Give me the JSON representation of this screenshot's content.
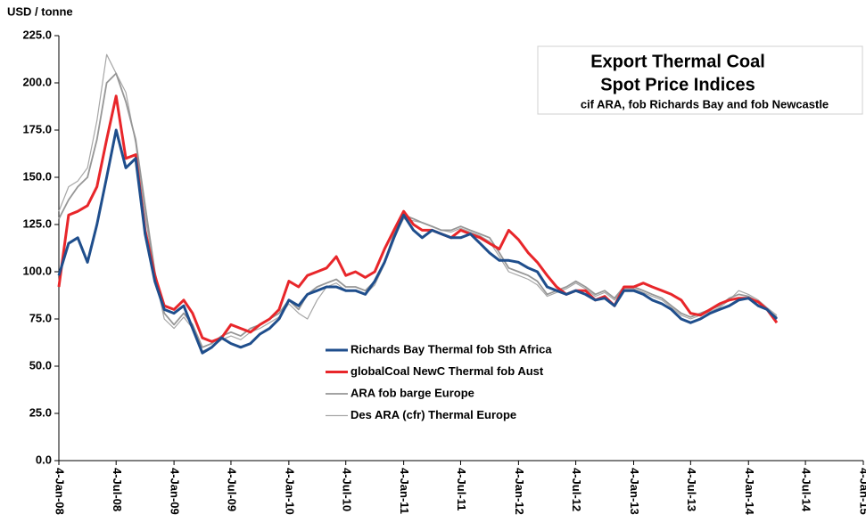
{
  "chart_data": {
    "type": "line",
    "title": "Export Thermal Coal",
    "subtitle": "Spot Price Indices",
    "annotation": "cif ARA, fob Richards Bay and  fob Newcastle",
    "y_label": "USD / tonne",
    "x": [
      "2008-01-04",
      "2008-02-04",
      "2008-03-04",
      "2008-04-04",
      "2008-05-04",
      "2008-06-04",
      "2008-07-04",
      "2008-08-04",
      "2008-09-04",
      "2008-10-04",
      "2008-11-04",
      "2008-12-04",
      "2009-01-04",
      "2009-02-04",
      "2009-03-04",
      "2009-04-04",
      "2009-05-04",
      "2009-06-04",
      "2009-07-04",
      "2009-08-04",
      "2009-09-04",
      "2009-10-04",
      "2009-11-04",
      "2009-12-04",
      "2010-01-04",
      "2010-02-04",
      "2010-03-04",
      "2010-04-04",
      "2010-05-04",
      "2010-06-04",
      "2010-07-04",
      "2010-08-04",
      "2010-09-04",
      "2010-10-04",
      "2010-11-04",
      "2010-12-04",
      "2011-01-04",
      "2011-02-04",
      "2011-03-04",
      "2011-04-04",
      "2011-05-04",
      "2011-06-04",
      "2011-07-04",
      "2011-08-04",
      "2011-09-04",
      "2011-10-04",
      "2011-11-04",
      "2011-12-04",
      "2012-01-04",
      "2012-02-04",
      "2012-03-04",
      "2012-04-04",
      "2012-05-04",
      "2012-06-04",
      "2012-07-04",
      "2012-08-04",
      "2012-09-04",
      "2012-10-04",
      "2012-11-04",
      "2012-12-04",
      "2013-01-04",
      "2013-02-04",
      "2013-03-04",
      "2013-04-04",
      "2013-05-04",
      "2013-06-04",
      "2013-07-04",
      "2013-08-04",
      "2013-09-04",
      "2013-10-04",
      "2013-11-04",
      "2013-12-04",
      "2014-01-04",
      "2014-02-04",
      "2014-03-04",
      "2014-04-04"
    ],
    "series": [
      {
        "name": "Des ARA (cfr) Thermal Europe",
        "color": "#a6a6a6",
        "values": [
          132,
          145,
          148,
          155,
          180,
          215,
          205,
          195,
          168,
          130,
          98,
          75,
          70,
          76,
          70,
          58,
          60,
          64,
          66,
          64,
          68,
          70,
          73,
          76,
          83,
          78,
          75,
          85,
          92,
          94,
          90,
          90,
          88,
          93,
          104,
          118,
          128,
          127,
          126,
          124,
          122,
          121,
          123,
          121,
          119,
          116,
          108,
          100,
          98,
          96,
          93,
          87,
          89,
          91,
          94,
          91,
          87,
          89,
          85,
          91,
          91,
          89,
          87,
          85,
          81,
          77,
          75,
          77,
          79,
          81,
          85,
          90,
          88,
          85,
          81,
          77
        ]
      },
      {
        "name": "ARA fob barge  Europe",
        "color": "#969696",
        "values": [
          128,
          138,
          145,
          150,
          170,
          200,
          205,
          190,
          170,
          135,
          100,
          78,
          72,
          78,
          72,
          60,
          62,
          66,
          68,
          66,
          70,
          72,
          75,
          78,
          85,
          80,
          88,
          92,
          94,
          96,
          92,
          92,
          90,
          95,
          105,
          120,
          130,
          128,
          126,
          124,
          122,
          122,
          124,
          122,
          120,
          118,
          110,
          102,
          100,
          98,
          95,
          88,
          90,
          92,
          95,
          92,
          88,
          90,
          86,
          92,
          92,
          90,
          88,
          86,
          82,
          78,
          76,
          78,
          80,
          82,
          86,
          88,
          87,
          84,
          80,
          76
        ]
      },
      {
        "name": "globalCoal NewC Thermal fob  Aust",
        "color": "#e8262a",
        "values": [
          92,
          130,
          132,
          135,
          145,
          170,
          193,
          160,
          162,
          122,
          98,
          82,
          80,
          85,
          78,
          65,
          63,
          65,
          72,
          70,
          68,
          72,
          75,
          80,
          95,
          92,
          98,
          100,
          102,
          108,
          98,
          100,
          97,
          100,
          112,
          122,
          132,
          125,
          122,
          122,
          120,
          118,
          122,
          120,
          118,
          115,
          112,
          122,
          117,
          110,
          105,
          98,
          92,
          88,
          90,
          90,
          85,
          87,
          82,
          92,
          92,
          94,
          92,
          90,
          88,
          85,
          78,
          77,
          80,
          83,
          85,
          86,
          86,
          84,
          80,
          73
        ]
      },
      {
        "name": "Richards Bay Thermal fob  Sth Africa",
        "color": "#1f4e8c",
        "values": [
          98,
          115,
          118,
          105,
          125,
          150,
          175,
          155,
          160,
          120,
          95,
          80,
          78,
          82,
          70,
          57,
          60,
          65,
          62,
          60,
          62,
          67,
          70,
          75,
          85,
          82,
          88,
          90,
          92,
          92,
          90,
          90,
          88,
          95,
          105,
          118,
          130,
          122,
          118,
          122,
          120,
          118,
          118,
          120,
          115,
          110,
          106,
          106,
          105,
          102,
          100,
          92,
          90,
          88,
          90,
          88,
          85,
          86,
          82,
          90,
          90,
          88,
          85,
          83,
          80,
          75,
          73,
          75,
          78,
          80,
          82,
          85,
          86,
          82,
          80,
          75
        ]
      }
    ],
    "legend_order": [
      3,
      2,
      1,
      0
    ],
    "xlim": [
      "2008-01-04",
      "2015-01-04"
    ],
    "xticks": [
      {
        "value": "2008-01-04",
        "label": "4-Jan-08"
      },
      {
        "value": "2008-07-04",
        "label": "4-Jul-08"
      },
      {
        "value": "2009-01-04",
        "label": "4-Jan-09"
      },
      {
        "value": "2009-07-04",
        "label": "4-Jul-09"
      },
      {
        "value": "2010-01-04",
        "label": "4-Jan-10"
      },
      {
        "value": "2010-07-04",
        "label": "4-Jul-10"
      },
      {
        "value": "2011-01-04",
        "label": "4-Jan-11"
      },
      {
        "value": "2011-07-04",
        "label": "4-Jul-11"
      },
      {
        "value": "2012-01-04",
        "label": "4-Jan-12"
      },
      {
        "value": "2012-07-04",
        "label": "4-Jul-12"
      },
      {
        "value": "2013-01-04",
        "label": "4-Jan-13"
      },
      {
        "value": "2013-07-04",
        "label": "4-Jul-13"
      },
      {
        "value": "2014-01-04",
        "label": "4-Jan-14"
      },
      {
        "value": "2014-07-04",
        "label": "4-Jul-14"
      },
      {
        "value": "2015-01-04",
        "label": "4-Jan-15"
      }
    ],
    "ylim": [
      0,
      225
    ],
    "yticks": [
      {
        "value": 0,
        "label": "0.0"
      },
      {
        "value": 25,
        "label": "25.0"
      },
      {
        "value": 50,
        "label": "50.0"
      },
      {
        "value": 75,
        "label": "75.0"
      },
      {
        "value": 100,
        "label": "100.0"
      },
      {
        "value": 125,
        "label": "125.0"
      },
      {
        "value": 150,
        "label": "150.0"
      },
      {
        "value": 175,
        "label": "175.0"
      },
      {
        "value": 200,
        "label": "200.0"
      },
      {
        "value": 225,
        "label": "225.0"
      }
    ],
    "grid": false
  }
}
